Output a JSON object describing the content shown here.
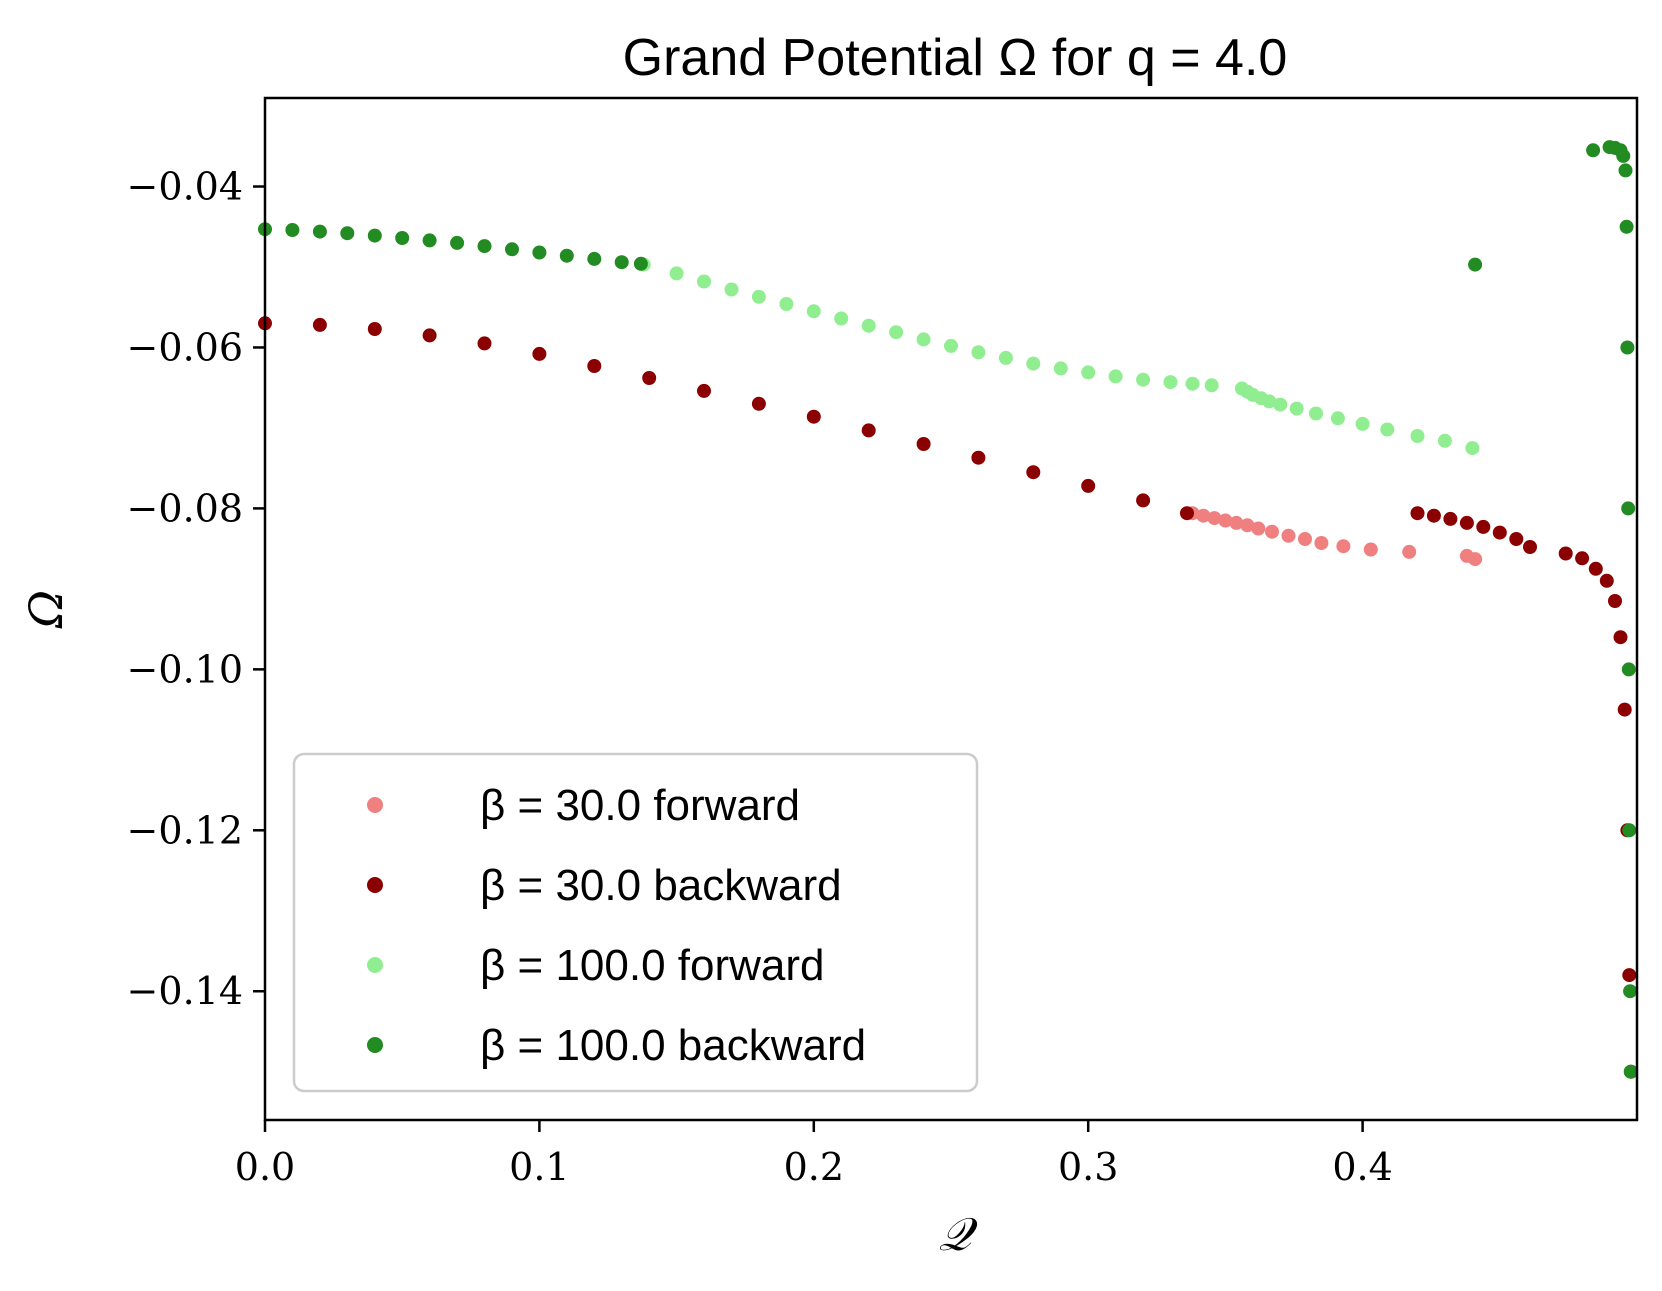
{
  "chart_data": {
    "type": "scatter",
    "title": "Grand Potential Ω for q = 4.0",
    "xlabel": "𝒬",
    "ylabel": "Ω",
    "xlim": [
      0.0,
      0.5
    ],
    "ylim": [
      -0.156,
      -0.029
    ],
    "xticks": [
      0.0,
      0.1,
      0.2,
      0.3,
      0.4
    ],
    "xtick_labels": [
      "0.0",
      "0.1",
      "0.2",
      "0.3",
      "0.4"
    ],
    "yticks": [
      -0.04,
      -0.06,
      -0.08,
      -0.1,
      -0.12,
      -0.14
    ],
    "ytick_labels": [
      "−0.04",
      "−0.06",
      "−0.08",
      "−0.10",
      "−0.12",
      "−0.14"
    ],
    "grid": false,
    "legend_position": "lower-left",
    "series": [
      {
        "name": "β = 30.0 forward",
        "color": "#f08080",
        "points": [
          [
            0.338,
            -0.0806
          ],
          [
            0.342,
            -0.0809
          ],
          [
            0.346,
            -0.0812
          ],
          [
            0.35,
            -0.0815
          ],
          [
            0.354,
            -0.0818
          ],
          [
            0.358,
            -0.0821
          ],
          [
            0.362,
            -0.0825
          ],
          [
            0.367,
            -0.0829
          ],
          [
            0.373,
            -0.0834
          ],
          [
            0.379,
            -0.0838
          ],
          [
            0.385,
            -0.0843
          ],
          [
            0.393,
            -0.0847
          ],
          [
            0.403,
            -0.0851
          ],
          [
            0.417,
            -0.0854
          ],
          [
            0.438,
            -0.0859
          ],
          [
            0.441,
            -0.0863
          ]
        ]
      },
      {
        "name": "β = 30.0 backward",
        "color": "#8b0000",
        "points": [
          [
            0.0,
            -0.057
          ],
          [
            0.02,
            -0.0572
          ],
          [
            0.04,
            -0.0577
          ],
          [
            0.06,
            -0.0585
          ],
          [
            0.08,
            -0.0595
          ],
          [
            0.1,
            -0.0608
          ],
          [
            0.12,
            -0.0623
          ],
          [
            0.14,
            -0.0638
          ],
          [
            0.16,
            -0.0654
          ],
          [
            0.18,
            -0.067
          ],
          [
            0.2,
            -0.0686
          ],
          [
            0.22,
            -0.0703
          ],
          [
            0.24,
            -0.072
          ],
          [
            0.26,
            -0.0737
          ],
          [
            0.28,
            -0.0755
          ],
          [
            0.3,
            -0.0772
          ],
          [
            0.32,
            -0.079
          ],
          [
            0.336,
            -0.0806
          ],
          [
            0.42,
            -0.0806
          ],
          [
            0.426,
            -0.0809
          ],
          [
            0.432,
            -0.0813
          ],
          [
            0.438,
            -0.0818
          ],
          [
            0.444,
            -0.0823
          ],
          [
            0.45,
            -0.083
          ],
          [
            0.456,
            -0.0838
          ],
          [
            0.461,
            -0.0848
          ],
          [
            0.474,
            -0.0856
          ],
          [
            0.48,
            -0.0862
          ],
          [
            0.485,
            -0.0875
          ],
          [
            0.489,
            -0.089
          ],
          [
            0.492,
            -0.0915
          ],
          [
            0.494,
            -0.096
          ],
          [
            0.4955,
            -0.105
          ],
          [
            0.4965,
            -0.12
          ],
          [
            0.4972,
            -0.138
          ],
          [
            0.4978,
            -0.15
          ]
        ]
      },
      {
        "name": "β = 100.0 forward",
        "color": "#90ee90",
        "points": [
          [
            0.138,
            -0.0497
          ],
          [
            0.15,
            -0.0508
          ],
          [
            0.16,
            -0.0518
          ],
          [
            0.17,
            -0.0528
          ],
          [
            0.18,
            -0.0537
          ],
          [
            0.19,
            -0.0546
          ],
          [
            0.2,
            -0.0555
          ],
          [
            0.21,
            -0.0564
          ],
          [
            0.22,
            -0.0573
          ],
          [
            0.23,
            -0.0581
          ],
          [
            0.24,
            -0.059
          ],
          [
            0.25,
            -0.0598
          ],
          [
            0.26,
            -0.0606
          ],
          [
            0.27,
            -0.0613
          ],
          [
            0.28,
            -0.062
          ],
          [
            0.29,
            -0.0626
          ],
          [
            0.3,
            -0.0631
          ],
          [
            0.31,
            -0.0636
          ],
          [
            0.32,
            -0.064
          ],
          [
            0.33,
            -0.0643
          ],
          [
            0.338,
            -0.0645
          ],
          [
            0.345,
            -0.0647
          ],
          [
            0.356,
            -0.0651
          ],
          [
            0.358,
            -0.0655
          ],
          [
            0.36,
            -0.0659
          ],
          [
            0.363,
            -0.0663
          ],
          [
            0.366,
            -0.0667
          ],
          [
            0.37,
            -0.0671
          ],
          [
            0.376,
            -0.0676
          ],
          [
            0.383,
            -0.0682
          ],
          [
            0.391,
            -0.0688
          ],
          [
            0.4,
            -0.0695
          ],
          [
            0.409,
            -0.0702
          ],
          [
            0.42,
            -0.071
          ],
          [
            0.43,
            -0.0716
          ],
          [
            0.44,
            -0.0725
          ]
        ]
      },
      {
        "name": "β = 100.0 backward",
        "color": "#228b22",
        "points": [
          [
            0.0,
            -0.0453
          ],
          [
            0.01,
            -0.0454
          ],
          [
            0.02,
            -0.0456
          ],
          [
            0.03,
            -0.0458
          ],
          [
            0.04,
            -0.0461
          ],
          [
            0.05,
            -0.0464
          ],
          [
            0.06,
            -0.0467
          ],
          [
            0.07,
            -0.047
          ],
          [
            0.08,
            -0.0474
          ],
          [
            0.09,
            -0.0478
          ],
          [
            0.1,
            -0.0482
          ],
          [
            0.11,
            -0.0486
          ],
          [
            0.12,
            -0.049
          ],
          [
            0.13,
            -0.0494
          ],
          [
            0.137,
            -0.0496
          ],
          [
            0.441,
            -0.0497
          ],
          [
            0.484,
            -0.0355
          ],
          [
            0.49,
            -0.0351
          ],
          [
            0.492,
            -0.0352
          ],
          [
            0.494,
            -0.0355
          ],
          [
            0.495,
            -0.0362
          ],
          [
            0.4958,
            -0.038
          ],
          [
            0.4962,
            -0.045
          ],
          [
            0.4965,
            -0.06
          ],
          [
            0.4968,
            -0.08
          ],
          [
            0.497,
            -0.1
          ],
          [
            0.4972,
            -0.12
          ],
          [
            0.4975,
            -0.14
          ],
          [
            0.4977,
            -0.15
          ]
        ]
      }
    ]
  }
}
